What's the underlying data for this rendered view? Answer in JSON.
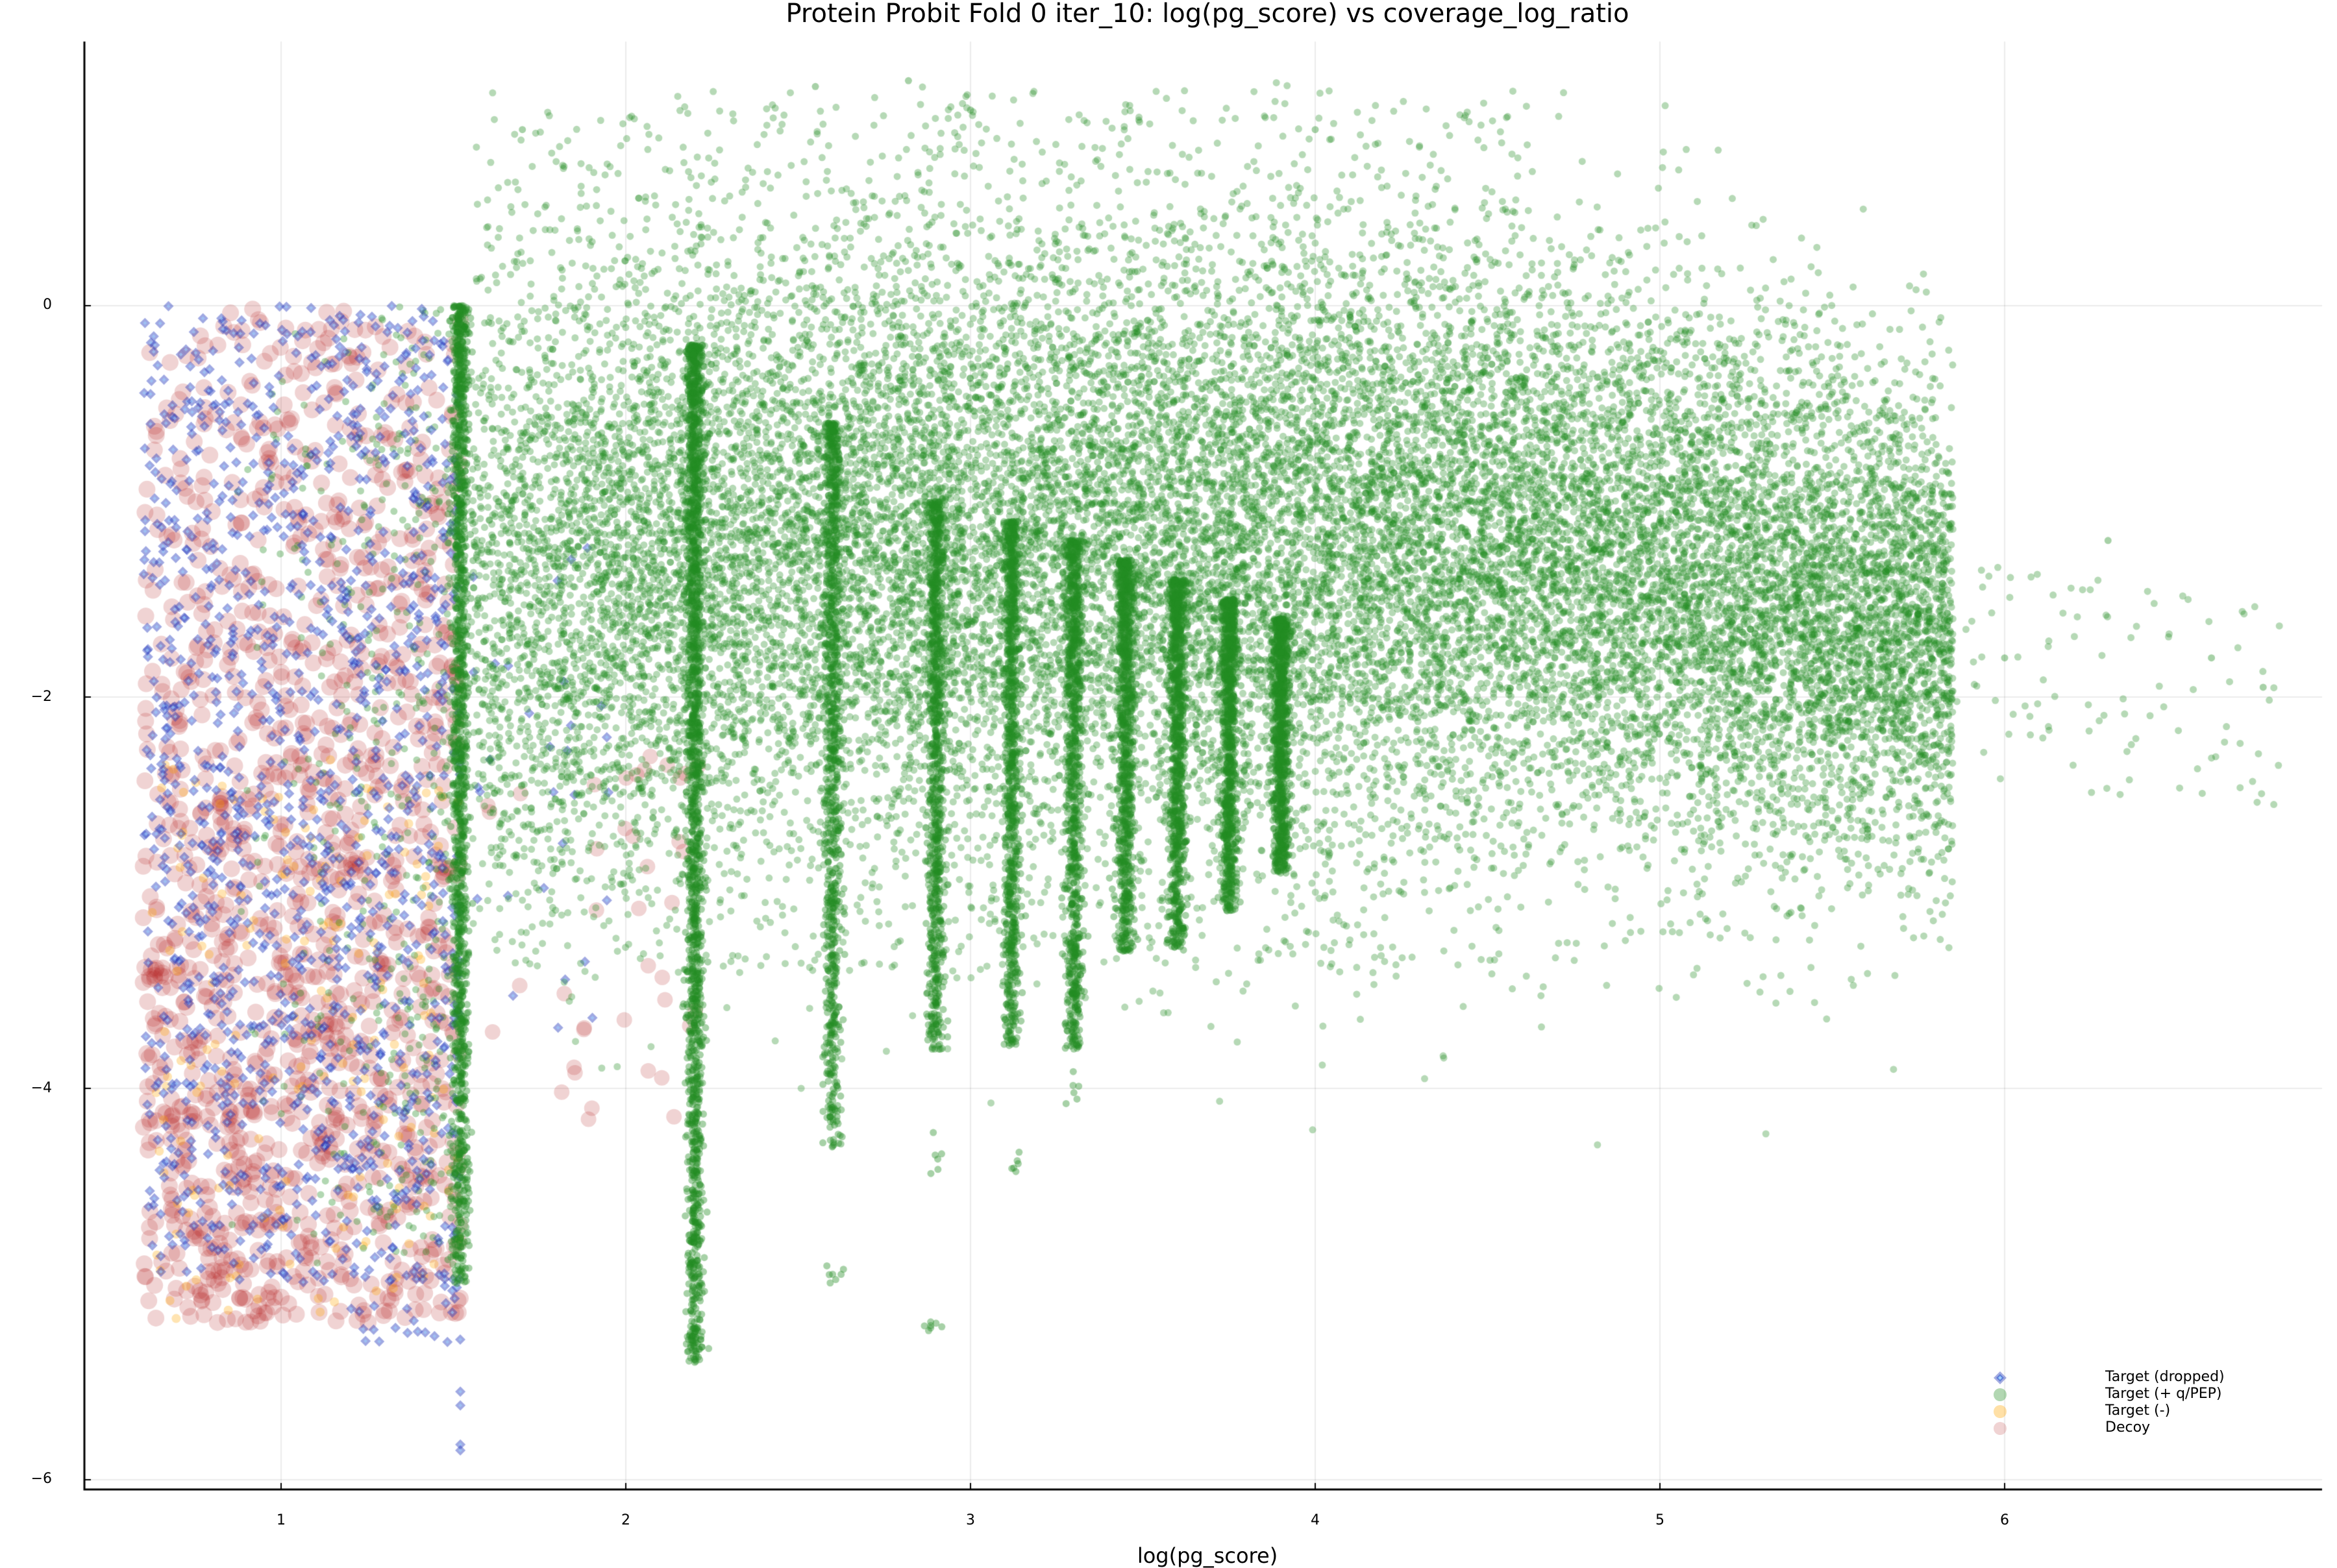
{
  "title": "Protein Probit Fold 0 iter_10: log(pg_score) vs coverage_log_ratio",
  "xlabel": "log(pg_score)",
  "ylabel": "",
  "axes": {
    "x_ticks": [
      "1",
      "2",
      "3",
      "4",
      "5",
      "6"
    ],
    "y_ticks": [
      "0",
      "−2",
      "−4",
      "−6"
    ]
  },
  "legend": [
    {
      "label": "Target (dropped)",
      "marker": "diamond",
      "color": "#2a3fbf"
    },
    {
      "label": "Target (+ q/PEP)",
      "marker": "circle",
      "color": "#228b22"
    },
    {
      "label": "Target (-)",
      "marker": "circle",
      "color": "#ffa500"
    },
    {
      "label": "Decoy",
      "marker": "circle",
      "color": "#b22222"
    }
  ],
  "chart_data": {
    "type": "scatter",
    "title": "Protein Probit Fold 0 iter_10: log(pg_score) vs coverage_log_ratio",
    "xlabel": "log(pg_score)",
    "ylabel": "",
    "xlim": [
      0.43,
      6.95
    ],
    "ylim": [
      -6.05,
      0.6
    ],
    "x_ticks": [
      1,
      2,
      3,
      4,
      5,
      6
    ],
    "y_ticks": [
      0,
      -2,
      -4,
      -6
    ],
    "grid": true,
    "legend_position": "bottom-right",
    "series": [
      {
        "name": "Target (dropped)",
        "marker": "diamond",
        "color": "#2a3fbf",
        "x_range": [
          0.6,
          1.52
        ],
        "y_range": [
          -5.85,
          0.0
        ],
        "description": "dense blue diamonds confined to log(pg_score) < 1.52, covering coverage_log_ratio 0 to -5.3 with outliers near -5.6 and -5.85 at x≈1.52",
        "sample_points": [
          [
            0.62,
            -0.05
          ],
          [
            0.8,
            -0.5
          ],
          [
            1.0,
            -1.2
          ],
          [
            1.2,
            -2.0
          ],
          [
            1.35,
            -2.6
          ],
          [
            1.45,
            -3.2
          ],
          [
            1.5,
            -4.5
          ],
          [
            1.38,
            -5.3
          ],
          [
            1.52,
            -5.6
          ],
          [
            1.52,
            -5.82
          ]
        ]
      },
      {
        "name": "Target (+ q/PEP)",
        "marker": "circle",
        "color": "#228b22",
        "x_range": [
          1.45,
          6.8
        ],
        "y_range": [
          -5.4,
          1.2
        ],
        "description": "main green cloud, densest around x 2.5-4.5, y -0.5 to -2.5; vertical striations at x≈1.52, 2.2, 2.6, 2.9, 3.12, 3.3, 3.45, 3.6, 3.75, 3.9",
        "stripes": [
          {
            "x": 1.52,
            "y_top": 0.0,
            "y_bottom": -5.0
          },
          {
            "x": 2.2,
            "y_top": -0.2,
            "y_bottom": -5.4
          },
          {
            "x": 2.6,
            "y_top": -0.6,
            "y_bottom": -4.3
          },
          {
            "x": 2.9,
            "y_top": -1.0,
            "y_bottom": -3.8
          },
          {
            "x": 3.12,
            "y_top": -1.1,
            "y_bottom": -3.8
          },
          {
            "x": 3.3,
            "y_top": -1.2,
            "y_bottom": -3.8
          },
          {
            "x": 3.45,
            "y_top": -1.3,
            "y_bottom": -3.3
          },
          {
            "x": 3.6,
            "y_top": -1.4,
            "y_bottom": -3.3
          },
          {
            "x": 3.75,
            "y_top": -1.5,
            "y_bottom": -3.1
          },
          {
            "x": 3.9,
            "y_top": -1.6,
            "y_bottom": -2.9
          }
        ],
        "sample_points": [
          [
            1.7,
            0.9
          ],
          [
            2.55,
            1.12
          ],
          [
            2.82,
            1.15
          ],
          [
            3.0,
            1.0
          ],
          [
            4.0,
            0.9
          ],
          [
            2.2,
            -5.4
          ],
          [
            2.6,
            -4.95
          ],
          [
            2.9,
            -5.2
          ],
          [
            5.2,
            -2.2
          ],
          [
            5.6,
            -2.0
          ],
          [
            6.0,
            -1.8
          ],
          [
            6.3,
            -1.2
          ],
          [
            6.6,
            -1.8
          ],
          [
            6.75,
            -1.95
          ]
        ]
      },
      {
        "name": "Target (-)",
        "marker": "circle",
        "color": "#ffa500",
        "x_range": [
          0.6,
          1.8
        ],
        "y_range": [
          -5.2,
          -1.5
        ],
        "description": "sparse orange points mostly in lower-left region x 0.6-1.5, y -2.5 to -5.1",
        "sample_points": [
          [
            0.7,
            -3.4
          ],
          [
            0.8,
            -4.0
          ],
          [
            1.0,
            -4.8
          ],
          [
            1.2,
            -5.0
          ],
          [
            1.5,
            -5.1
          ],
          [
            1.72,
            -3.2
          ]
        ]
      },
      {
        "name": "Decoy",
        "marker": "circle",
        "color": "#b22222",
        "x_range": [
          0.6,
          2.25
        ],
        "y_range": [
          -5.25,
          0.0
        ],
        "description": "large translucent red circles, concentrated x 0.6-1.52, y 0 to -5.2, densest around -2.5 to -4.5; few scattered to x≈2.2",
        "sample_points": [
          [
            0.65,
            -0.1
          ],
          [
            0.7,
            -2.0
          ],
          [
            0.9,
            -3.5
          ],
          [
            1.1,
            -4.2
          ],
          [
            1.3,
            -5.0
          ],
          [
            1.5,
            -3.0
          ],
          [
            1.75,
            -2.4
          ],
          [
            1.85,
            -3.4
          ],
          [
            2.0,
            -4.0
          ],
          [
            2.2,
            -2.5
          ]
        ]
      }
    ]
  }
}
